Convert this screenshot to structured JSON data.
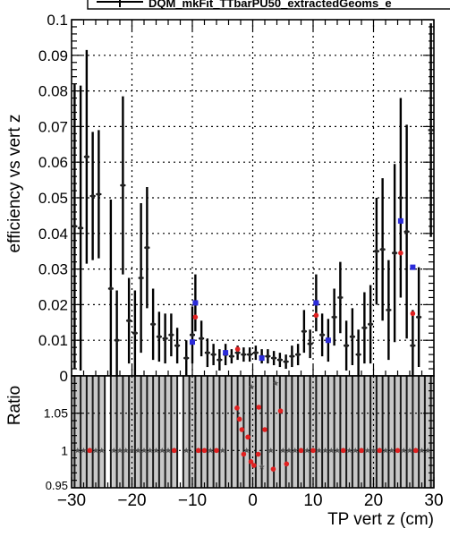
{
  "legend": {
    "entry": "DQM_mkFit_TTbarPU50_extractedGeoms_e"
  },
  "chart_data": [
    {
      "type": "scatter",
      "panel": "efficiency",
      "ylabel": "efficiency vs vert z",
      "xlim": [
        -30,
        30
      ],
      "ylim": [
        0,
        0.1
      ],
      "grid": true,
      "x_ticks": [
        -30,
        -20,
        -10,
        0,
        10,
        20,
        30
      ],
      "y_ticks": [
        0,
        0.01,
        0.02,
        0.03,
        0.04,
        0.05,
        0.06,
        0.07,
        0.08,
        0.09,
        0.1
      ],
      "y_tick_labels": [
        "0",
        "0.01",
        "0.02",
        "0.03",
        "0.04",
        "0.05",
        "0.06",
        "0.07",
        "0.08",
        "0.09",
        "0.1"
      ],
      "series": [
        {
          "name": "DQM_mkFit_TTbarPU50_extractedGeoms_e",
          "color": "#000000",
          "marker": "cross",
          "points": [
            {
              "x": -29.5,
              "y": 0.042,
              "err": 0.04
            },
            {
              "x": -28.5,
              "y": 0.0415,
              "err": 0.04
            },
            {
              "x": -27.5,
              "y": 0.0615,
              "err": 0.03
            },
            {
              "x": -26.5,
              "y": 0.0505,
              "err": 0.018
            },
            {
              "x": -25.5,
              "y": 0.051,
              "err": 0.018
            },
            {
              "x": -23.5,
              "y": 0.0245,
              "err": 0.025
            },
            {
              "x": -22.5,
              "y": 0.01,
              "err": 0.014
            },
            {
              "x": -21.5,
              "y": 0.0535,
              "err": 0.025
            },
            {
              "x": -20.5,
              "y": 0.0155,
              "err": 0.012
            },
            {
              "x": -19.5,
              "y": 0.012,
              "err": 0.012
            },
            {
              "x": -18.5,
              "y": 0.0275,
              "err": 0.021
            },
            {
              "x": -17.5,
              "y": 0.036,
              "err": 0.017
            },
            {
              "x": -16.5,
              "y": 0.0145,
              "err": 0.01
            },
            {
              "x": -15.5,
              "y": 0.011,
              "err": 0.007
            },
            {
              "x": -14.5,
              "y": 0.0105,
              "err": 0.007
            },
            {
              "x": -13.5,
              "y": 0.0115,
              "err": 0.006
            },
            {
              "x": -12.5,
              "y": 0.0085,
              "err": 0.005
            },
            {
              "x": -11.0,
              "y": 0.005,
              "err": 0.005
            },
            {
              "x": -10.0,
              "y": 0.0115,
              "err": 0.008
            },
            {
              "x": -9.5,
              "y": 0.0205,
              "err": 0.008
            },
            {
              "x": -8.5,
              "y": 0.0105,
              "err": 0.005
            },
            {
              "x": -7.5,
              "y": 0.0065,
              "err": 0.004
            },
            {
              "x": -6.5,
              "y": 0.006,
              "err": 0.003
            },
            {
              "x": -5.5,
              "y": 0.0045,
              "err": 0.003
            },
            {
              "x": -4.5,
              "y": 0.006,
              "err": 0.003
            },
            {
              "x": -3.5,
              "y": 0.0055,
              "err": 0.002
            },
            {
              "x": -2.5,
              "y": 0.0065,
              "err": 0.002
            },
            {
              "x": -1.5,
              "y": 0.006,
              "err": 0.002
            },
            {
              "x": -0.5,
              "y": 0.006,
              "err": 0.002
            },
            {
              "x": 0.5,
              "y": 0.0065,
              "err": 0.002
            },
            {
              "x": 1.5,
              "y": 0.0055,
              "err": 0.002
            },
            {
              "x": 2.5,
              "y": 0.0055,
              "err": 0.002
            },
            {
              "x": 3.5,
              "y": 0.005,
              "err": 0.002
            },
            {
              "x": 4.5,
              "y": 0.0045,
              "err": 0.002
            },
            {
              "x": 5.5,
              "y": 0.004,
              "err": 0.002
            },
            {
              "x": 6.5,
              "y": 0.0055,
              "err": 0.003
            },
            {
              "x": 7.5,
              "y": 0.006,
              "err": 0.003
            },
            {
              "x": 8.5,
              "y": 0.0125,
              "err": 0.006
            },
            {
              "x": 9.5,
              "y": 0.009,
              "err": 0.004
            },
            {
              "x": 10.5,
              "y": 0.0205,
              "err": 0.008
            },
            {
              "x": 11.5,
              "y": 0.0115,
              "err": 0.006
            },
            {
              "x": 12.5,
              "y": 0.01,
              "err": 0.006
            },
            {
              "x": 13.5,
              "y": 0.0165,
              "err": 0.008
            },
            {
              "x": 14.5,
              "y": 0.022,
              "err": 0.01
            },
            {
              "x": 15.5,
              "y": 0.0085,
              "err": 0.007
            },
            {
              "x": 16.5,
              "y": 0.011,
              "err": 0.008
            },
            {
              "x": 17.5,
              "y": 0.006,
              "err": 0.007
            },
            {
              "x": 18.5,
              "y": 0.0135,
              "err": 0.01
            },
            {
              "x": 19.5,
              "y": 0.0145,
              "err": 0.011
            },
            {
              "x": 20.5,
              "y": 0.035,
              "err": 0.015
            },
            {
              "x": 21.5,
              "y": 0.0355,
              "err": 0.02
            },
            {
              "x": 22.5,
              "y": 0.0185,
              "err": 0.014
            },
            {
              "x": 23.5,
              "y": 0.0345,
              "err": 0.025
            },
            {
              "x": 24.5,
              "y": 0.05,
              "err": 0.028
            },
            {
              "x": 25.5,
              "y": 0.0405,
              "err": 0.03
            },
            {
              "x": 26.5,
              "y": 0.0085,
              "err": 0.01
            },
            {
              "x": 27.5,
              "y": 0.0165,
              "err": 0.014
            },
            {
              "x": 29.5,
              "y": 0.069,
              "err": 0.03
            }
          ]
        },
        {
          "color": "#2b2bd9",
          "marker": "square",
          "points": [
            {
              "x": -9.5,
              "y": 0.0205
            },
            {
              "x": -10.0,
              "y": 0.0095
            },
            {
              "x": -4.5,
              "y": 0.0065
            },
            {
              "x": 1.5,
              "y": 0.005
            },
            {
              "x": 10.5,
              "y": 0.0205
            },
            {
              "x": 12.5,
              "y": 0.01
            },
            {
              "x": 24.5,
              "y": 0.0435
            },
            {
              "x": 26.5,
              "y": 0.0305
            }
          ]
        },
        {
          "color": "#e02020",
          "marker": "circle",
          "points": [
            {
              "x": -9.5,
              "y": 0.0165
            },
            {
              "x": -2.5,
              "y": 0.0075
            },
            {
              "x": 10.5,
              "y": 0.017
            },
            {
              "x": 24.5,
              "y": 0.0345
            },
            {
              "x": 26.5,
              "y": 0.0175
            }
          ]
        }
      ]
    },
    {
      "type": "scatter",
      "panel": "ratio",
      "xlabel": "TP vert z (cm)",
      "ylabel": "Ratio",
      "xlim": [
        -30,
        30
      ],
      "ylim": [
        0.95,
        1.1
      ],
      "grid": true,
      "x_ticks": [
        -30,
        -20,
        -10,
        0,
        10,
        20,
        30
      ],
      "x_tick_labels": [
        "−30",
        "−20",
        "−10",
        "0",
        "10",
        "20",
        "30"
      ],
      "y_ticks": [
        0.95,
        1,
        1.05
      ],
      "y_tick_labels": [
        "0.95",
        "1",
        "1.05"
      ],
      "band_color": "#c8c8c8",
      "band_gaps": [
        [
          -24.6,
          -23.3
        ],
        [
          -12.5,
          -11.5
        ]
      ],
      "series": [
        {
          "color": "#555555",
          "marker": "star",
          "points": [
            {
              "x": -29,
              "y": 1.0
            },
            {
              "x": -28,
              "y": 1.0
            },
            {
              "x": -27,
              "y": 1.0
            },
            {
              "x": -26,
              "y": 1.0
            },
            {
              "x": -25,
              "y": 1.0
            },
            {
              "x": -23,
              "y": 1.0
            },
            {
              "x": -22,
              "y": 1.0
            },
            {
              "x": -21,
              "y": 1.0
            },
            {
              "x": -20,
              "y": 1.0
            },
            {
              "x": -19,
              "y": 1.0
            },
            {
              "x": -18,
              "y": 1.0
            },
            {
              "x": -17,
              "y": 1.0
            },
            {
              "x": -16,
              "y": 1.0
            },
            {
              "x": -15,
              "y": 1.0
            },
            {
              "x": -14,
              "y": 1.0
            },
            {
              "x": -13,
              "y": 1.0
            },
            {
              "x": -11,
              "y": 1.0
            },
            {
              "x": -9,
              "y": 1.0
            },
            {
              "x": -7,
              "y": 1.0
            },
            {
              "x": -5,
              "y": 1.0
            },
            {
              "x": -1,
              "y": 1.0
            },
            {
              "x": 3,
              "y": 1.0
            },
            {
              "x": 5,
              "y": 1.0
            },
            {
              "x": 6,
              "y": 1.0
            },
            {
              "x": 7,
              "y": 1.0
            },
            {
              "x": 8,
              "y": 1.0
            },
            {
              "x": 9,
              "y": 1.0
            },
            {
              "x": 11,
              "y": 1.0
            },
            {
              "x": 12,
              "y": 1.0
            },
            {
              "x": 13,
              "y": 1.0
            },
            {
              "x": 14,
              "y": 1.0
            },
            {
              "x": 15,
              "y": 1.0
            },
            {
              "x": 16,
              "y": 1.0
            },
            {
              "x": 17,
              "y": 1.0
            },
            {
              "x": 18,
              "y": 1.0
            },
            {
              "x": 19,
              "y": 1.0
            },
            {
              "x": 20,
              "y": 1.0
            },
            {
              "x": 21,
              "y": 1.0
            },
            {
              "x": 22,
              "y": 1.0
            },
            {
              "x": 23,
              "y": 1.0
            },
            {
              "x": 25,
              "y": 1.0
            },
            {
              "x": 26,
              "y": 1.0
            },
            {
              "x": 27,
              "y": 1.0
            },
            {
              "x": 28,
              "y": 1.0
            },
            {
              "x": 29,
              "y": 1.0
            },
            {
              "x": -0.2,
              "y": 1.085
            },
            {
              "x": 1.5,
              "y": 0.978
            },
            {
              "x": 3.8,
              "y": 1.09
            }
          ]
        },
        {
          "color": "#e02020",
          "marker": "circle",
          "points": [
            {
              "x": -27,
              "y": 1.0
            },
            {
              "x": -13,
              "y": 1.0
            },
            {
              "x": -9,
              "y": 1.0
            },
            {
              "x": -8,
              "y": 1.0
            },
            {
              "x": -6,
              "y": 1.0
            },
            {
              "x": -2.6,
              "y": 1.057
            },
            {
              "x": -2.2,
              "y": 1.042
            },
            {
              "x": -1.8,
              "y": 1.028
            },
            {
              "x": -1.5,
              "y": 0.995
            },
            {
              "x": -0.8,
              "y": 1.018
            },
            {
              "x": -0.3,
              "y": 0.985
            },
            {
              "x": 0.2,
              "y": 0.98
            },
            {
              "x": 0.9,
              "y": 0.995
            },
            {
              "x": 1.0,
              "y": 1.058
            },
            {
              "x": 2.0,
              "y": 1.028
            },
            {
              "x": 3.4,
              "y": 0.975
            },
            {
              "x": 4.6,
              "y": 1.053
            },
            {
              "x": 5.6,
              "y": 0.982
            },
            {
              "x": 8.0,
              "y": 1.0
            },
            {
              "x": 10.0,
              "y": 1.0
            },
            {
              "x": 15,
              "y": 1.0
            },
            {
              "x": 18,
              "y": 1.0
            },
            {
              "x": 21,
              "y": 1.0
            },
            {
              "x": 24,
              "y": 1.0
            },
            {
              "x": 27,
              "y": 1.0
            }
          ]
        }
      ]
    }
  ]
}
